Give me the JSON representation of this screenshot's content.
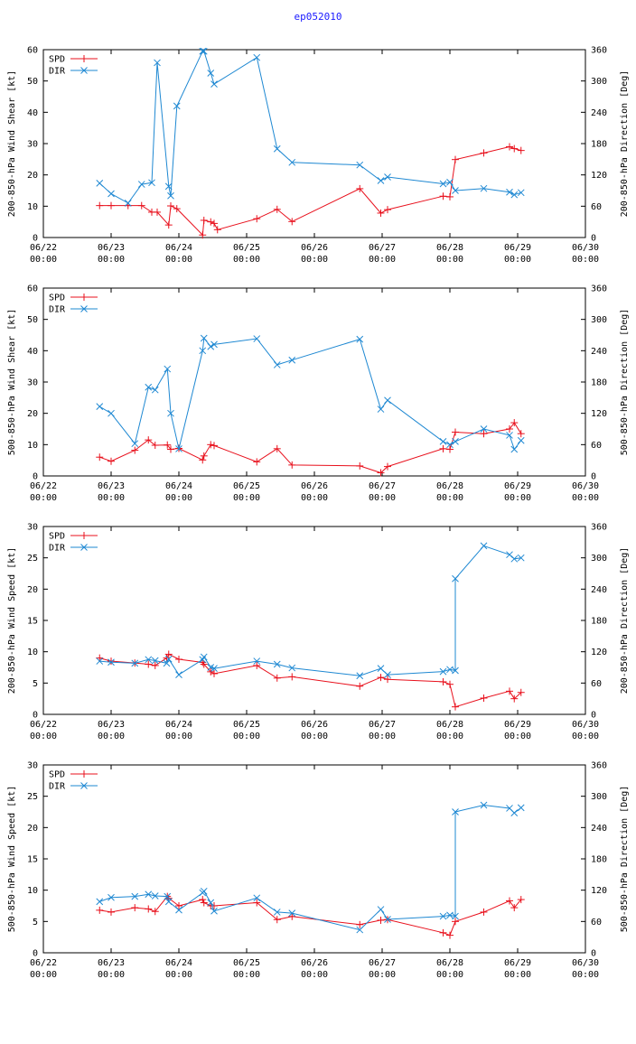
{
  "page_title": "ep052010",
  "x_ticks": [
    [
      "06/22",
      "00:00"
    ],
    [
      "06/23",
      "00:00"
    ],
    [
      "06/24",
      "00:00"
    ],
    [
      "06/25",
      "00:00"
    ],
    [
      "06/26",
      "00:00"
    ],
    [
      "06/27",
      "00:00"
    ],
    [
      "06/28",
      "00:00"
    ],
    [
      "06/29",
      "00:00"
    ],
    [
      "06/30",
      "00:00"
    ]
  ],
  "colors": {
    "spd": "#e8101c",
    "dir": "#1e88d2"
  },
  "chart_data": [
    {
      "type": "line",
      "ylabel": "200-850-hPa Wind Shear [kt]",
      "y2label": "200-850-hPa Direction [Deg]",
      "ylim": [
        0,
        60
      ],
      "yticks": [
        0,
        10,
        20,
        30,
        40,
        50,
        60
      ],
      "y2lim": [
        0,
        360
      ],
      "y2ticks": [
        0,
        60,
        120,
        180,
        240,
        300,
        360
      ],
      "xlim": [
        0,
        8
      ],
      "legend": [
        "SPD",
        "DIR"
      ],
      "series": [
        {
          "name": "SPD",
          "axis": "left",
          "x": [
            0.83,
            1.0,
            1.25,
            1.45,
            1.6,
            1.68,
            1.85,
            1.88,
            1.97,
            2.35,
            2.37,
            2.47,
            2.52,
            2.57,
            3.15,
            3.45,
            3.67,
            4.67,
            4.98,
            5.08,
            5.9,
            6.0,
            6.08,
            6.5,
            6.88,
            6.95,
            7.05
          ],
          "y": [
            10.2,
            10.2,
            10.2,
            10.2,
            8.1,
            8.1,
            4.0,
            10.1,
            9.2,
            0.8,
            5.5,
            5.0,
            4.5,
            2.5,
            6.0,
            9.0,
            5.1,
            15.6,
            7.8,
            8.9,
            13.2,
            13.0,
            24.9,
            27.0,
            29.0,
            28.4,
            27.8
          ]
        },
        {
          "name": "DIR",
          "axis": "right",
          "x": [
            0.83,
            1.0,
            1.25,
            1.45,
            1.6,
            1.68,
            1.85,
            1.88,
            1.97,
            2.35,
            2.37,
            2.47,
            2.52,
            3.15,
            3.45,
            3.67,
            4.67,
            4.98,
            5.08,
            5.9,
            6.0,
            6.08,
            6.5,
            6.88,
            6.95,
            7.05
          ],
          "y": [
            104,
            84,
            66,
            102,
            105,
            335,
            98,
            80,
            252,
            357,
            357,
            315,
            294,
            345,
            170,
            144,
            139,
            109,
            116,
            103,
            106,
            90,
            94,
            87,
            82,
            86
          ]
        }
      ]
    },
    {
      "type": "line",
      "ylabel": "500-850-hPa Wind Shear [kt]",
      "y2label": "500-850-hPa Direction [Deg]",
      "ylim": [
        0,
        60
      ],
      "yticks": [
        0,
        10,
        20,
        30,
        40,
        50,
        60
      ],
      "y2lim": [
        0,
        360
      ],
      "y2ticks": [
        0,
        60,
        120,
        180,
        240,
        300,
        360
      ],
      "xlim": [
        0,
        8
      ],
      "legend": [
        "SPD",
        "DIR"
      ],
      "series": [
        {
          "name": "SPD",
          "axis": "left",
          "x": [
            0.83,
            1.0,
            1.35,
            1.55,
            1.65,
            1.83,
            1.88,
            2.0,
            2.35,
            2.37,
            2.47,
            2.52,
            3.15,
            3.45,
            3.67,
            4.67,
            4.98,
            5.08,
            5.9,
            6.0,
            6.08,
            6.5,
            6.88,
            6.95,
            7.05
          ],
          "y": [
            6.0,
            4.7,
            8.2,
            11.5,
            9.8,
            9.9,
            8.5,
            8.8,
            5.1,
            6.4,
            10.0,
            9.7,
            4.5,
            8.7,
            3.5,
            3.2,
            1.0,
            3.0,
            8.7,
            8.5,
            14.0,
            13.5,
            15.0,
            17.0,
            13.5
          ]
        },
        {
          "name": "DIR",
          "axis": "right",
          "x": [
            0.83,
            1.0,
            1.35,
            1.55,
            1.65,
            1.83,
            1.88,
            2.0,
            2.35,
            2.37,
            2.47,
            2.52,
            3.15,
            3.45,
            3.67,
            4.67,
            4.98,
            5.08,
            5.9,
            6.0,
            6.08,
            6.5,
            6.88,
            6.95,
            7.05
          ],
          "y": [
            133,
            120,
            62,
            170,
            165,
            205,
            120,
            52,
            240,
            264,
            248,
            252,
            263,
            213,
            222,
            262,
            128,
            145,
            66,
            60,
            66,
            90,
            78,
            51,
            68
          ]
        }
      ]
    },
    {
      "type": "line",
      "ylabel": "200-850-hPa Wind Speed [kt]",
      "y2label": "200-850-hPa Direction [Deg]",
      "ylim": [
        0,
        30
      ],
      "yticks": [
        0,
        5,
        10,
        15,
        20,
        25,
        30
      ],
      "y2lim": [
        0,
        360
      ],
      "y2ticks": [
        0,
        60,
        120,
        180,
        240,
        300,
        360
      ],
      "xlim": [
        0,
        8
      ],
      "legend": [
        "SPD",
        "DIR"
      ],
      "series": [
        {
          "name": "SPD",
          "axis": "left",
          "x": [
            0.83,
            1.0,
            1.35,
            1.55,
            1.65,
            1.82,
            1.85,
            2.0,
            2.35,
            2.37,
            2.47,
            2.52,
            3.15,
            3.45,
            3.67,
            4.67,
            4.98,
            5.08,
            5.9,
            6.0,
            6.08,
            6.5,
            6.88,
            6.95,
            7.05
          ],
          "y": [
            9.0,
            8.5,
            8.2,
            8.0,
            7.8,
            9.0,
            9.6,
            8.8,
            8.3,
            8.0,
            6.8,
            6.5,
            7.8,
            5.8,
            6.0,
            4.5,
            5.9,
            5.6,
            5.2,
            4.8,
            1.2,
            2.6,
            3.7,
            2.5,
            3.5
          ]
        },
        {
          "name": "DIR",
          "axis": "right",
          "x": [
            0.83,
            1.0,
            1.35,
            1.55,
            1.65,
            1.82,
            1.85,
            2.0,
            2.35,
            2.37,
            2.47,
            2.52,
            3.15,
            3.45,
            3.67,
            4.67,
            4.98,
            5.08,
            5.9,
            6.0,
            6.08,
            6.08,
            6.5,
            6.88,
            6.95,
            7.05
          ],
          "y": [
            102,
            100,
            98,
            105,
            103,
            98,
            106,
            76,
            105,
            110,
            90,
            88,
            102,
            96,
            89,
            74,
            88,
            76,
            82,
            86,
            84,
            260,
            323,
            306,
            298,
            300
          ]
        }
      ]
    },
    {
      "type": "line",
      "ylabel": "500-850-hPa Wind Speed [kt]",
      "y2label": "500-850-hPa Direction [Deg]",
      "ylim": [
        0,
        30
      ],
      "yticks": [
        0,
        5,
        10,
        15,
        20,
        25,
        30
      ],
      "y2lim": [
        0,
        360
      ],
      "y2ticks": [
        0,
        60,
        120,
        180,
        240,
        300,
        360
      ],
      "xlim": [
        0,
        8
      ],
      "legend": [
        "SPD",
        "DIR"
      ],
      "series": [
        {
          "name": "SPD",
          "axis": "left",
          "x": [
            0.83,
            1.0,
            1.35,
            1.55,
            1.65,
            1.83,
            1.85,
            2.0,
            2.35,
            2.37,
            2.47,
            2.52,
            3.15,
            3.45,
            3.67,
            4.67,
            4.98,
            5.08,
            5.9,
            6.0,
            6.08,
            6.5,
            6.88,
            6.95,
            7.05
          ],
          "y": [
            6.8,
            6.5,
            7.2,
            7.0,
            6.6,
            9.0,
            8.7,
            7.5,
            8.5,
            8.0,
            7.5,
            7.5,
            8.0,
            5.3,
            5.8,
            4.5,
            5.2,
            5.3,
            3.2,
            2.8,
            5.0,
            6.5,
            8.3,
            7.2,
            8.5
          ]
        },
        {
          "name": "DIR",
          "axis": "right",
          "x": [
            0.83,
            1.0,
            1.35,
            1.55,
            1.65,
            1.83,
            1.85,
            2.0,
            2.35,
            2.37,
            2.47,
            2.52,
            3.15,
            3.45,
            3.67,
            4.67,
            4.98,
            5.08,
            5.9,
            6.0,
            6.08,
            6.08,
            6.5,
            6.88,
            6.95,
            7.05
          ],
          "y": [
            98,
            106,
            108,
            112,
            109,
            108,
            98,
            82,
            115,
            118,
            96,
            80,
            105,
            78,
            76,
            44,
            83,
            64,
            70,
            72,
            70,
            270,
            283,
            277,
            268,
            278
          ]
        }
      ]
    }
  ]
}
